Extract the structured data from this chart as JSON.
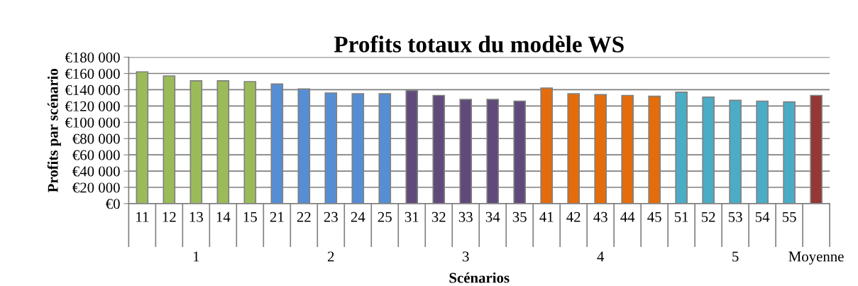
{
  "chart_data": {
    "type": "bar",
    "title": "Profits totaux du modèle WS",
    "xlabel": "Scénarios",
    "ylabel": "Profits par scénario",
    "categories": [
      "11",
      "12",
      "13",
      "14",
      "15",
      "21",
      "22",
      "23",
      "24",
      "25",
      "31",
      "32",
      "33",
      "34",
      "35",
      "41",
      "42",
      "43",
      "44",
      "45",
      "51",
      "52",
      "53",
      "54",
      "55",
      null
    ],
    "values": [
      162000,
      157000,
      151000,
      151000,
      150000,
      147000,
      141000,
      136000,
      135000,
      135000,
      139000,
      133000,
      128000,
      128000,
      126000,
      142000,
      135000,
      134000,
      133000,
      132000,
      137000,
      131000,
      127000,
      126000,
      125000,
      133000
    ],
    "colors": [
      "#9bbb59",
      "#9bbb59",
      "#9bbb59",
      "#9bbb59",
      "#9bbb59",
      "#558ed5",
      "#558ed5",
      "#558ed5",
      "#558ed5",
      "#558ed5",
      "#604a7b",
      "#604a7b",
      "#604a7b",
      "#604a7b",
      "#604a7b",
      "#e46c0a",
      "#e46c0a",
      "#e46c0a",
      "#e46c0a",
      "#e46c0a",
      "#4bacc6",
      "#4bacc6",
      "#4bacc6",
      "#4bacc6",
      "#4bacc6",
      "#953735"
    ],
    "annotations": [
      "1",
      "2",
      "3",
      "4",
      "5",
      "Moyenne"
    ],
    "ylim": [
      0,
      180000
    ],
    "yticks": [
      {
        "value": 0,
        "label": "€0"
      },
      {
        "value": 20000,
        "label": "€20 000"
      },
      {
        "value": 40000,
        "label": "€40 000"
      },
      {
        "value": 60000,
        "label": "€60 000"
      },
      {
        "value": 80000,
        "label": "€80 000"
      },
      {
        "value": 100000,
        "label": "€100 000"
      },
      {
        "value": 120000,
        "label": "€120 000"
      },
      {
        "value": 140000,
        "label": "€140 000"
      },
      {
        "value": 160000,
        "label": "€160 000"
      },
      {
        "value": 180000,
        "label": "€180 000"
      }
    ],
    "grid": "y"
  }
}
